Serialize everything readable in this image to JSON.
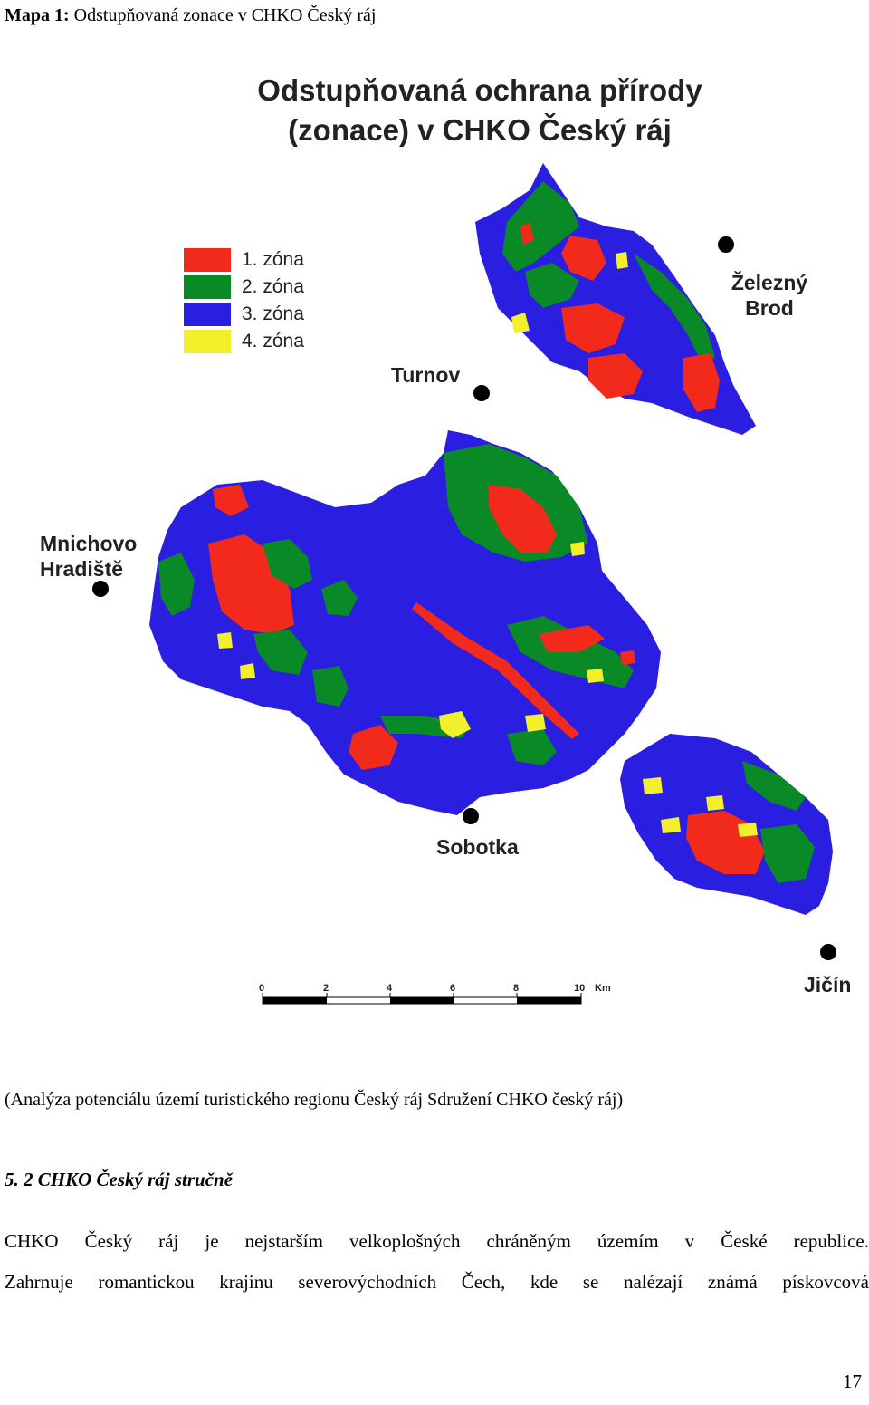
{
  "caption": {
    "label": "Mapa 1:",
    "text": "Odstupňovaná zonace v CHKO Český ráj"
  },
  "map": {
    "title_line1": "Odstupňovaná ochrana přírody",
    "title_line2": "(zonace) v CHKO Český ráj",
    "legend": [
      {
        "label": "1. zóna",
        "color": "#f22a1c"
      },
      {
        "label": "2. zóna",
        "color": "#0a8a26"
      },
      {
        "label": "3. zóna",
        "color": "#2a1ee0"
      },
      {
        "label": "4. zóna",
        "color": "#f2f02a"
      }
    ],
    "towns": {
      "zelezny_brod_1": "Železný",
      "zelezny_brod_2": "Brod",
      "turnov": "Turnov",
      "mnichovo_1": "Mnichovo",
      "mnichovo_2": "Hradiště",
      "sobotka": "Sobotka",
      "jicin": "Jičín"
    },
    "scale": {
      "ticks": [
        "0",
        "2",
        "4",
        "6",
        "8",
        "10"
      ],
      "unit": "Km"
    }
  },
  "source": "(Analýza potenciálu území turistického regionu Český ráj   Sdružení CHKO český ráj)",
  "section_heading": "5. 2 CHKO Český ráj stručně",
  "paragraph_line1": "CHKO Český ráj je nejstarším velkoplošných chráněným územím v České republice.",
  "paragraph_line2": "Zahrnuje romantickou krajinu severovýchodních Čech, kde se nalézají známá pískovcová",
  "page_number": "17"
}
